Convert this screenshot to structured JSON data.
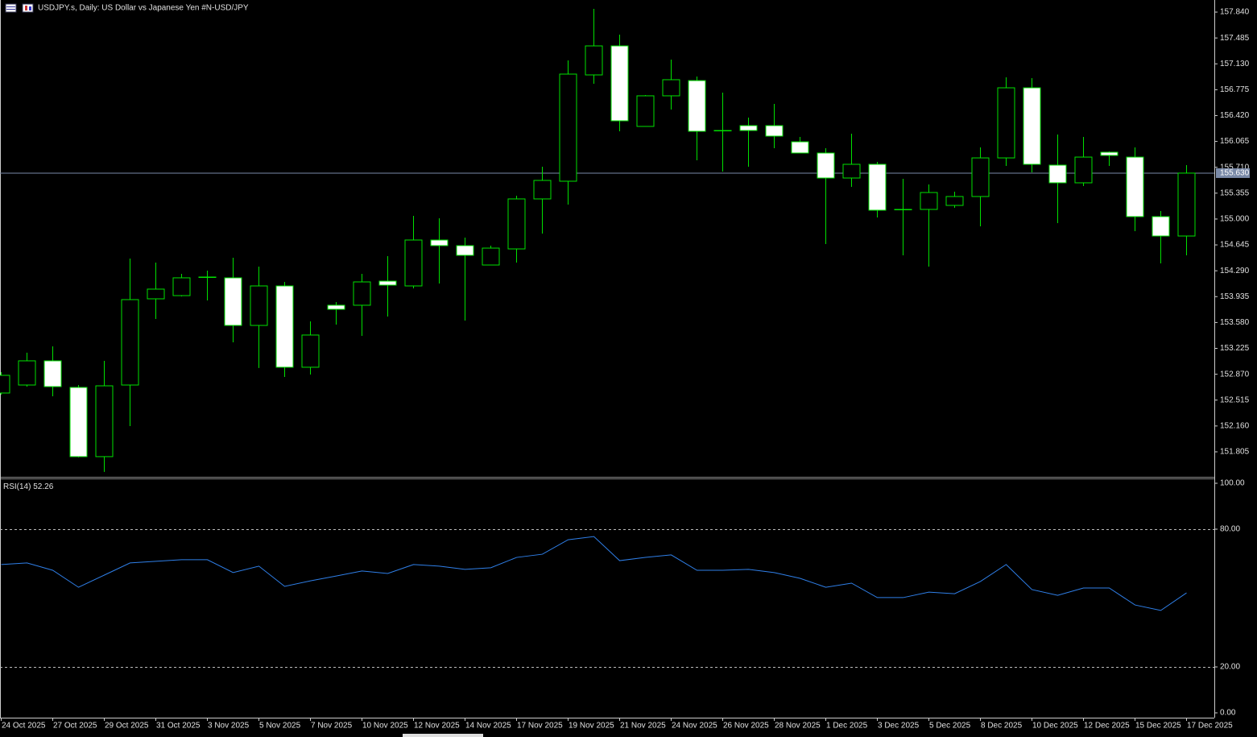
{
  "chart_data": [
    {
      "type": "candlestick",
      "title": "USDJPY.s, Daily:  US Dollar vs  Japanese Yen #N-USD/JPY",
      "categories": [
        "24 Oct 2025",
        null,
        "27 Oct 2025",
        null,
        "29 Oct 2025",
        null,
        "31 Oct 2025",
        null,
        "3 Nov 2025",
        null,
        "5 Nov 2025",
        null,
        "7 Nov 2025",
        null,
        "10 Nov 2025",
        null,
        "12 Nov 2025",
        null,
        "14 Nov 2025",
        null,
        "17 Nov 2025",
        null,
        "19 Nov 2025",
        null,
        "21 Nov 2025",
        null,
        "24 Nov 2025",
        null,
        "26 Nov 2025",
        null,
        "28 Nov 2025",
        null,
        "1 Dec 2025",
        null,
        "3 Dec 2025",
        null,
        "5 Dec 2025",
        null,
        "8 Dec 2025",
        null,
        "10 Dec 2025",
        null,
        "12 Dec 2025",
        null,
        "15 Dec 2025",
        null,
        "17 Dec 2025"
      ],
      "open": [
        152.612,
        152.722,
        153.054,
        152.689,
        151.739,
        152.722,
        153.905,
        153.949,
        154.198,
        154.193,
        153.54,
        154.082,
        152.966,
        153.817,
        153.817,
        154.148,
        154.082,
        154.712,
        154.635,
        154.369,
        154.59,
        155.276,
        155.519,
        156.978,
        157.376,
        156.271,
        156.691,
        156.9,
        156.21,
        156.282,
        156.282,
        156.06,
        155.906,
        155.563,
        155.751,
        155.127,
        155.132,
        155.187,
        155.309,
        155.839,
        156.801,
        155.74,
        155.497,
        155.917,
        155.85,
        155.033,
        154.767
      ],
      "high": [
        152.899,
        153.165,
        153.253,
        152.722,
        153.054,
        154.458,
        154.403,
        154.248,
        154.292,
        154.469,
        154.347,
        154.137,
        153.596,
        153.861,
        154.248,
        154.491,
        155.044,
        155.01,
        154.745,
        154.635,
        155.32,
        155.718,
        157.177,
        157.884,
        157.531,
        156.702,
        157.188,
        156.956,
        156.735,
        156.392,
        156.58,
        156.127,
        155.972,
        156.171,
        155.784,
        155.552,
        155.475,
        155.375,
        155.983,
        156.945,
        156.934,
        156.16,
        156.127,
        155.928,
        155.983,
        155.11,
        155.74
      ],
      "low": [
        152.59,
        152.7,
        152.568,
        151.728,
        151.529,
        152.159,
        153.629,
        153.938,
        153.883,
        153.308,
        152.955,
        152.833,
        152.866,
        153.551,
        153.397,
        153.662,
        154.049,
        154.115,
        153.607,
        154.369,
        154.403,
        154.8,
        155.198,
        156.856,
        156.204,
        156.271,
        156.503,
        155.806,
        155.652,
        155.718,
        155.972,
        155.906,
        154.657,
        155.442,
        155.021,
        154.502,
        154.347,
        155.154,
        154.9,
        155.729,
        155.64,
        154.944,
        155.453,
        155.729,
        154.834,
        154.391,
        154.502
      ],
      "close": [
        152.855,
        153.054,
        152.7,
        151.739,
        152.711,
        153.894,
        154.038,
        154.193,
        154.204,
        153.54,
        154.082,
        152.966,
        153.408,
        153.761,
        154.137,
        154.093,
        154.712,
        154.635,
        154.502,
        154.601,
        155.276,
        155.53,
        156.989,
        157.376,
        156.348,
        156.691,
        156.912,
        156.204,
        156.215,
        156.215,
        156.138,
        155.906,
        155.563,
        155.751,
        155.121,
        155.132,
        155.364,
        155.309,
        155.839,
        156.801,
        155.751,
        155.497,
        155.85,
        155.873,
        155.033,
        154.767,
        155.63
      ],
      "ylim": [
        151.473,
        158.006
      ],
      "yticks": [
        {
          "value": 157.84,
          "label": "157.840"
        },
        {
          "value": 157.485,
          "label": "157.485"
        },
        {
          "value": 157.13,
          "label": "157.130"
        },
        {
          "value": 156.775,
          "label": "156.775"
        },
        {
          "value": 156.42,
          "label": "156.420"
        },
        {
          "value": 156.065,
          "label": "156.065"
        },
        {
          "value": 155.71,
          "label": "155.710"
        },
        {
          "value": 155.355,
          "label": "155.355"
        },
        {
          "value": 155,
          "label": "155.000"
        },
        {
          "value": 154.645,
          "label": "154.645"
        },
        {
          "value": 154.29,
          "label": "154.290"
        },
        {
          "value": 153.935,
          "label": "153.935"
        },
        {
          "value": 153.58,
          "label": "153.580"
        },
        {
          "value": 153.225,
          "label": "153.225"
        },
        {
          "value": 152.87,
          "label": "152.870"
        },
        {
          "value": 152.515,
          "label": "152.515"
        },
        {
          "value": 152.16,
          "label": "152.160"
        },
        {
          "value": 151.805,
          "label": "151.805"
        }
      ],
      "current_price": {
        "value": 155.63,
        "label": "155.630"
      },
      "up_color": "#00e000",
      "down_color": "#ffffff",
      "price_line_color": "#7a8aa8"
    },
    {
      "type": "line",
      "title": "RSI(14)",
      "values": [
        64.6,
        65.3,
        62.1,
        54.7,
        60.0,
        65.3,
        66.0,
        66.7,
        66.7,
        61.1,
        63.9,
        55.1,
        57.5,
        59.6,
        61.8,
        60.7,
        64.6,
        63.9,
        62.5,
        63.2,
        67.7,
        69.1,
        75.4,
        76.8,
        66.3,
        67.7,
        68.8,
        62.1,
        62.1,
        62.5,
        61.1,
        58.6,
        54.7,
        56.5,
        50.2,
        50.2,
        52.6,
        51.9,
        57.2,
        64.6,
        53.7,
        51.2,
        54.4,
        54.4,
        47.0,
        44.6,
        52.26
      ],
      "color": "#2f7fe8",
      "ylim": [
        -1.75,
        101.4
      ],
      "yticks": [
        {
          "value": 100,
          "label": "100.00"
        },
        {
          "value": 80,
          "label": "80.00"
        },
        {
          "value": 20,
          "label": "20.00"
        },
        {
          "value": 0,
          "label": "0.00"
        }
      ],
      "levels": [
        80,
        20
      ]
    }
  ]
}
